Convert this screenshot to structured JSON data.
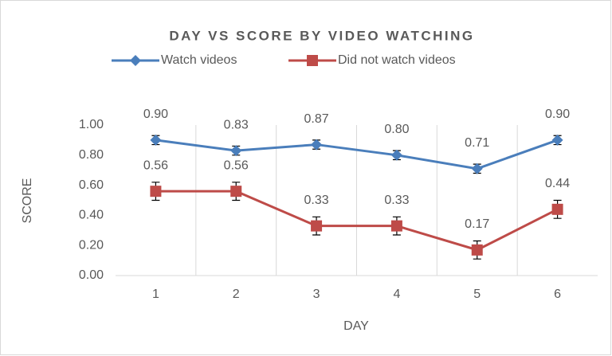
{
  "chart_data": {
    "type": "line",
    "title": "DAY VS SCORE BY VIDEO WATCHING",
    "x_label": "DAY",
    "y_label": "SCORE",
    "categories": [
      "1",
      "2",
      "3",
      "4",
      "5",
      "6"
    ],
    "series": [
      {
        "name": "Watch videos",
        "color": "#4a7ebb",
        "marker": "diamond",
        "values": [
          0.9,
          0.83,
          0.87,
          0.8,
          0.71,
          0.9
        ],
        "value_labels": [
          "0.90",
          "0.83",
          "0.87",
          "0.80",
          "0.71",
          "0.90"
        ],
        "errors": [
          0.03,
          0.03,
          0.03,
          0.03,
          0.03,
          0.03
        ]
      },
      {
        "name": "Did not watch videos",
        "color": "#be4b48",
        "marker": "square",
        "values": [
          0.56,
          0.56,
          0.33,
          0.33,
          0.17,
          0.44
        ],
        "value_labels": [
          "0.56",
          "0.56",
          "0.33",
          "0.33",
          "0.17",
          "0.44"
        ],
        "errors": [
          0.06,
          0.06,
          0.06,
          0.06,
          0.06,
          0.06
        ]
      }
    ],
    "ylim": [
      0,
      1
    ],
    "yticks": [
      {
        "value": 0,
        "label": "0.00"
      },
      {
        "value": 0.2,
        "label": "0.20"
      },
      {
        "value": 0.4,
        "label": "0.40"
      },
      {
        "value": 0.6,
        "label": "0.60"
      },
      {
        "value": 0.8,
        "label": "0.80"
      },
      {
        "value": 1,
        "label": "1.00"
      }
    ],
    "legend": "top"
  }
}
